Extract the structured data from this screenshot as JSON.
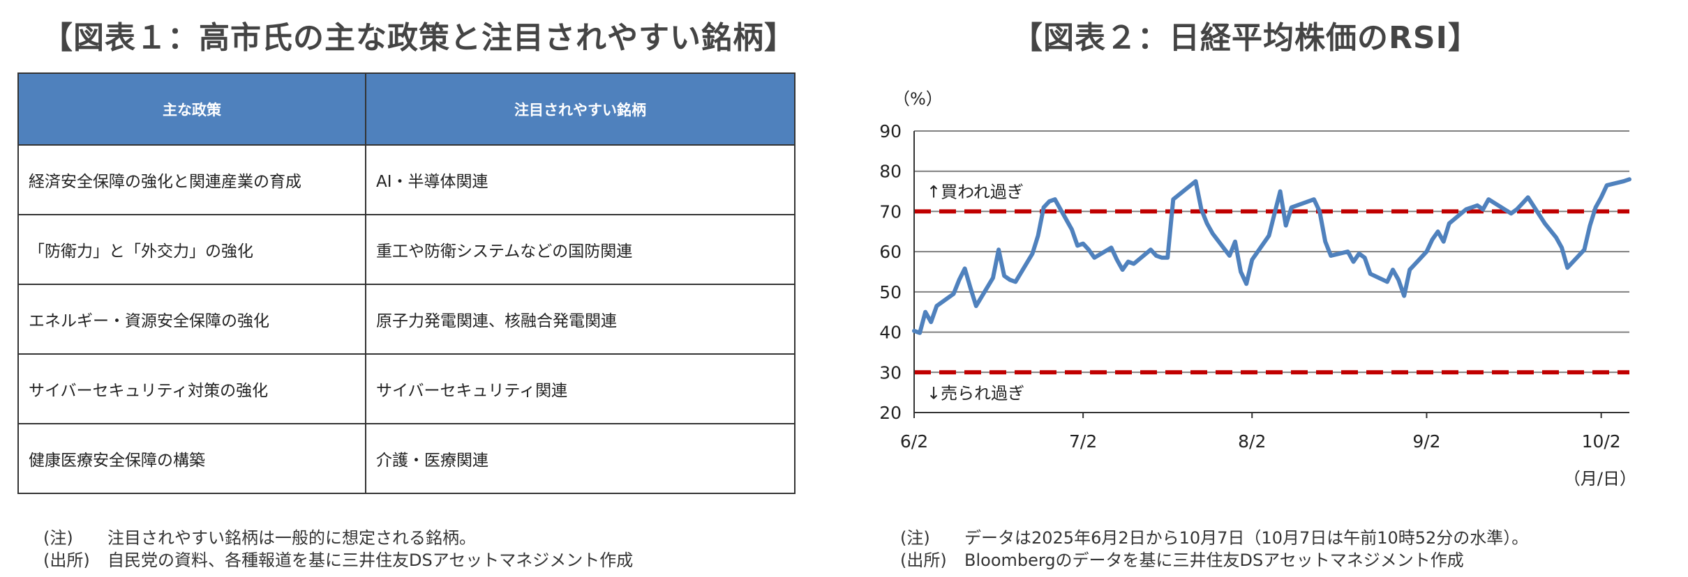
{
  "left_panel": {
    "title": "【図表１：高市氏の主な政策と注目されやすい銘柄】",
    "table": {
      "headers": [
        "主な政策",
        "注目されやすい銘柄"
      ],
      "rows": [
        [
          "経済安全保障の強化と関連産業の育成",
          "AI・半導体関連"
        ],
        [
          "「防衛力」と「外交力」の強化",
          "重工や防衛システムなどの国防関連"
        ],
        [
          "エネルギー・資源安全保障の強化",
          "原子力発電関連、核融合発電関連"
        ],
        [
          "サイバーセキュリティ対策の強化",
          "サイバーセキュリティ関連"
        ],
        [
          "健康医療安全保障の構築",
          "介護・医療関連"
        ]
      ]
    },
    "note_label": "(注)",
    "note_text": "注目されやすい銘柄は一般的に想定される銘柄。",
    "source_label": "(出所)",
    "source_text": "自民党の資料、各種報道を基に三井住友DSアセットマネジメント作成"
  },
  "right_panel": {
    "title": "【図表２：日経平均株価のRSI】",
    "note_label": "(注)",
    "note_text": "データは2025年6月2日から10月7日（10月7日は午前10時52分の水準）。",
    "source_label": "(出所)",
    "source_text": "Bloombergのデータを基に三井住友DSアセットマネジメント作成"
  },
  "chart_data": {
    "type": "line",
    "title": "【図表２：日経平均株価のRSI】",
    "ylabel": "（%）",
    "xlabel": "（月/日）",
    "ylim": [
      20,
      90
    ],
    "yticks": [
      20,
      30,
      40,
      50,
      60,
      70,
      80,
      90
    ],
    "xticks": [
      "6/2",
      "7/2",
      "8/2",
      "9/2",
      "10/2"
    ],
    "grid": true,
    "line_color": "#4f81bd",
    "threshold_color": "#c00000",
    "thresholds": [
      {
        "value": 70,
        "label": "↑買われ過ぎ"
      },
      {
        "value": 30,
        "label": "↓売られ過ぎ"
      }
    ],
    "series": [
      {
        "x": [
          "2025-06-02",
          "2025-06-03",
          "2025-06-04",
          "2025-06-05",
          "2025-06-06",
          "2025-06-09",
          "2025-06-10",
          "2025-06-11",
          "2025-06-12",
          "2025-06-13",
          "2025-06-16",
          "2025-06-17",
          "2025-06-18",
          "2025-06-19",
          "2025-06-20",
          "2025-06-23",
          "2025-06-24",
          "2025-06-25",
          "2025-06-26",
          "2025-06-27",
          "2025-06-30",
          "2025-07-01",
          "2025-07-02",
          "2025-07-03",
          "2025-07-04",
          "2025-07-07",
          "2025-07-08",
          "2025-07-09",
          "2025-07-10",
          "2025-07-11",
          "2025-07-14",
          "2025-07-15",
          "2025-07-16",
          "2025-07-17",
          "2025-07-18",
          "2025-07-22",
          "2025-07-23",
          "2025-07-24",
          "2025-07-25",
          "2025-07-28",
          "2025-07-29",
          "2025-07-30",
          "2025-07-31",
          "2025-08-01",
          "2025-08-04",
          "2025-08-05",
          "2025-08-06",
          "2025-08-07",
          "2025-08-08",
          "2025-08-12",
          "2025-08-13",
          "2025-08-14",
          "2025-08-15",
          "2025-08-18",
          "2025-08-19",
          "2025-08-20",
          "2025-08-21",
          "2025-08-22",
          "2025-08-25",
          "2025-08-26",
          "2025-08-27",
          "2025-08-28",
          "2025-08-29",
          "2025-09-01",
          "2025-09-02",
          "2025-09-03",
          "2025-09-04",
          "2025-09-05",
          "2025-09-08",
          "2025-09-09",
          "2025-09-10",
          "2025-09-11",
          "2025-09-12",
          "2025-09-16",
          "2025-09-17",
          "2025-09-18",
          "2025-09-19",
          "2025-09-22",
          "2025-09-24",
          "2025-09-25",
          "2025-09-26",
          "2025-09-29",
          "2025-09-30",
          "2025-10-01",
          "2025-10-02",
          "2025-10-03",
          "2025-10-06",
          "2025-10-07"
        ],
        "values": [
          40.3,
          39.8,
          45.0,
          42.5,
          46.5,
          49.5,
          53.0,
          55.8,
          51.0,
          46.5,
          53.5,
          60.5,
          54.0,
          53.0,
          52.5,
          59.5,
          64.0,
          71.0,
          72.5,
          73.0,
          65.5,
          61.5,
          62.0,
          60.5,
          58.5,
          61.0,
          58.0,
          55.5,
          57.5,
          57.0,
          60.5,
          59.0,
          58.5,
          58.5,
          73.0,
          77.5,
          70.5,
          67.0,
          64.5,
          59.0,
          62.5,
          55.0,
          52.0,
          58.0,
          64.0,
          69.5,
          75.0,
          66.5,
          71.0,
          73.0,
          70.0,
          62.5,
          59.0,
          60.0,
          57.5,
          59.5,
          58.5,
          54.5,
          52.5,
          55.5,
          53.0,
          49.0,
          55.5,
          60.0,
          63.0,
          65.0,
          62.5,
          67.0,
          70.5,
          71.0,
          71.5,
          70.5,
          73.0,
          69.5,
          70.5,
          72.0,
          73.5,
          67.0,
          63.5,
          61.0,
          56.0,
          60.5,
          66.5,
          71.0,
          73.5,
          76.5,
          77.5,
          78.0
        ]
      }
    ]
  }
}
